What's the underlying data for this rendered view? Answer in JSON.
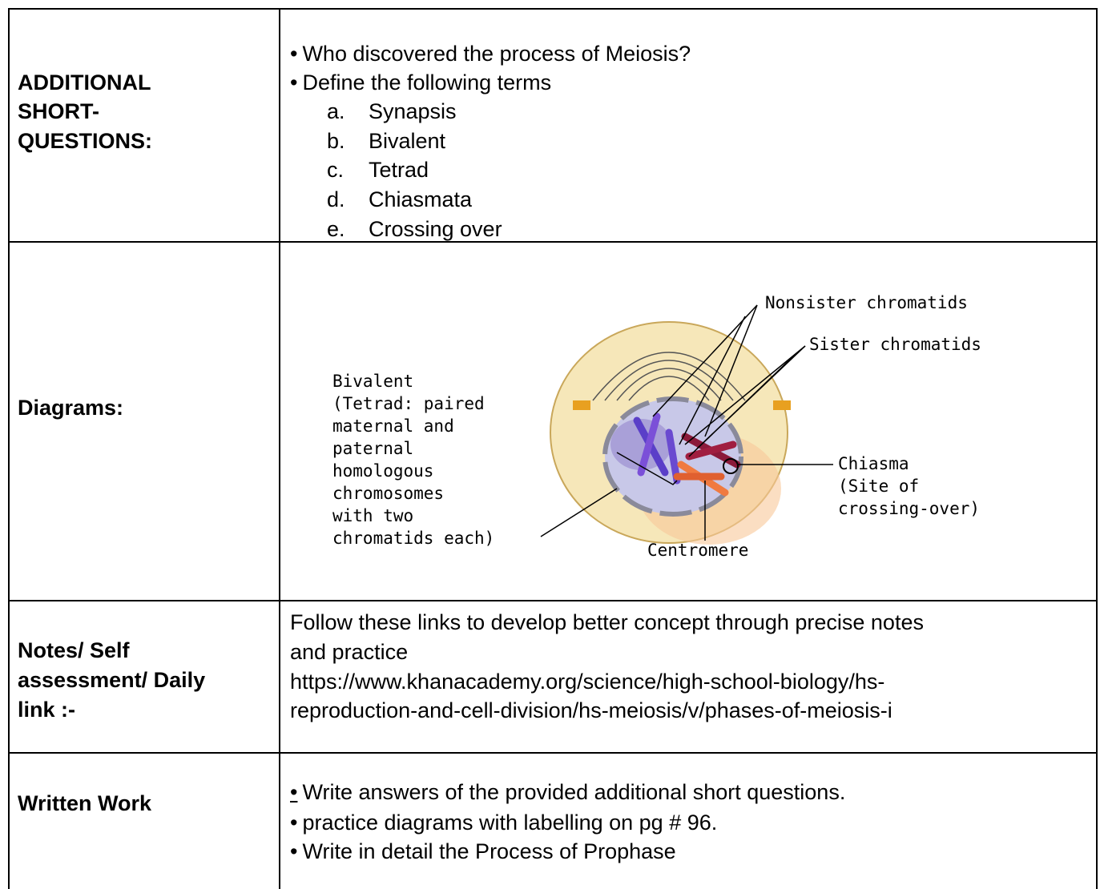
{
  "table": {
    "rows": [
      {
        "label_lines": [
          "ADDITIONAL",
          "SHORT-",
          "QUESTIONS:"
        ],
        "items": [
          "Who discovered the process of Meiosis?",
          "Define the following terms"
        ],
        "sub_items": [
          {
            "marker": "a.",
            "text": "Synapsis"
          },
          {
            "marker": "b.",
            "text": "Bivalent"
          },
          {
            "marker": "c.",
            "text": "Tetrad"
          },
          {
            "marker": "d.",
            "text": "Chiasmata"
          },
          {
            "marker": "e.",
            "text": "Crossing over"
          }
        ]
      },
      {
        "label_lines": [
          "Diagrams:"
        ],
        "diagram": {
          "nonsister": "Nonsister chromatids",
          "sister": "Sister chromatids",
          "bivalent_lines": [
            "Bivalent",
            "(Tetrad: paired",
            "maternal and",
            "paternal",
            "homologous",
            "chromosomes",
            "with two",
            "chromatids each)"
          ],
          "chiasma_lines": [
            "Chiasma",
            "(Site of",
            "crossing-over)"
          ],
          "centromere": "Centromere"
        }
      },
      {
        "label_lines": [
          "Notes/ Self",
          "assessment/ Daily",
          "link :-"
        ],
        "text_lines": [
          "Follow these links to develop better concept through precise notes",
          "and practice",
          "https://www.khanacademy.org/science/high-school-biology/hs-",
          "reproduction-and-cell-division/hs-meiosis/v/phases-of-meiosis-i"
        ]
      },
      {
        "label_lines": [
          "Written Work"
        ],
        "items": [
          "Write answers of the provided additional short questions.",
          "practice diagrams with labelling on pg # 96.",
          "Write in detail the Process of Prophase"
        ]
      }
    ]
  }
}
